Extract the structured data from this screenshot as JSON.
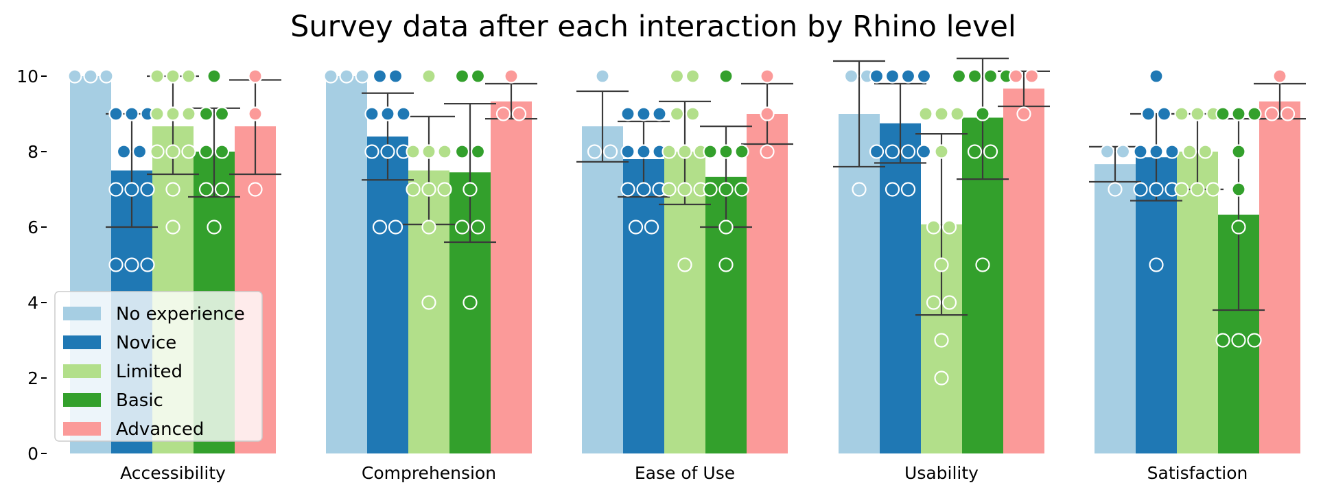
{
  "chart_data": {
    "type": "bar",
    "title": "Survey data after each interaction by Rhino level",
    "xlabel": "",
    "ylabel": "",
    "ylim": [
      0,
      10.2
    ],
    "yticks": [
      0,
      2,
      4,
      6,
      8,
      10
    ],
    "categories": [
      "Accessibility",
      "Comprehension",
      "Ease of Use",
      "Usability",
      "Satisfaction"
    ],
    "legend_position": "lower-left",
    "series": [
      {
        "name": "No experience",
        "color": "#a6cee3",
        "values": [
          10.0,
          10.0,
          8.67,
          9.0,
          7.67
        ],
        "err_low": [
          10.0,
          10.0,
          7.73,
          7.6,
          7.2
        ],
        "err_high": [
          10.0,
          10.0,
          9.6,
          10.4,
          8.13
        ],
        "points": [
          [
            10,
            10,
            10
          ],
          [
            10,
            10,
            10
          ],
          [
            8,
            8,
            10
          ],
          [
            10,
            10,
            7
          ],
          [
            8,
            8,
            7
          ]
        ]
      },
      {
        "name": "Novice",
        "color": "#1f78b4",
        "values": [
          7.5,
          8.4,
          7.8,
          8.75,
          7.85
        ],
        "err_low": [
          6.0,
          7.25,
          6.8,
          7.7,
          6.7
        ],
        "err_high": [
          9.0,
          9.55,
          8.8,
          9.8,
          9.0
        ],
        "points": [
          [
            9,
            9,
            9,
            8,
            8,
            7,
            7,
            7,
            5,
            5,
            5
          ],
          [
            10,
            10,
            9,
            9,
            9,
            8,
            8,
            8,
            6,
            6
          ],
          [
            9,
            9,
            9,
            8,
            8,
            8,
            7,
            7,
            7,
            6,
            6
          ],
          [
            10,
            10,
            10,
            10,
            8,
            8,
            8,
            8,
            7,
            7
          ],
          [
            10,
            9,
            9,
            8,
            8,
            8,
            7,
            7,
            7,
            5
          ]
        ]
      },
      {
        "name": "Limited",
        "color": "#b2df8a",
        "values": [
          8.67,
          7.5,
          8.0,
          6.07,
          8.0
        ],
        "err_low": [
          7.4,
          6.07,
          6.6,
          3.67,
          7.0
        ],
        "err_high": [
          10.0,
          8.93,
          9.33,
          8.47,
          9.0
        ],
        "points": [
          [
            10,
            10,
            10,
            9,
            9,
            9,
            8,
            8,
            8,
            7,
            6
          ],
          [
            10,
            8,
            8,
            8,
            7,
            7,
            7,
            6,
            4
          ],
          [
            10,
            10,
            9,
            9,
            8,
            8,
            8,
            7,
            7,
            7,
            5
          ],
          [
            9,
            9,
            9,
            8,
            6,
            6,
            5,
            4,
            4,
            3,
            2
          ],
          [
            9,
            9,
            9,
            8,
            8,
            7,
            7,
            7
          ]
        ]
      },
      {
        "name": "Basic",
        "color": "#33a02c",
        "values": [
          8.0,
          7.45,
          7.33,
          8.9,
          6.33
        ],
        "err_low": [
          6.8,
          5.6,
          6.0,
          7.27,
          3.8
        ],
        "err_high": [
          9.15,
          9.27,
          8.67,
          10.47,
          8.87
        ],
        "points": [
          [
            10,
            9,
            9,
            8,
            8,
            7,
            7,
            6
          ],
          [
            10,
            10,
            8,
            8,
            7,
            6,
            6,
            4
          ],
          [
            10,
            8,
            8,
            8,
            7,
            7,
            7,
            6,
            5
          ],
          [
            10,
            10,
            10,
            10,
            9,
            8,
            8,
            5
          ],
          [
            9,
            9,
            9,
            8,
            7,
            6,
            3,
            3,
            3
          ]
        ]
      },
      {
        "name": "Advanced",
        "color": "#fb9a99",
        "values": [
          8.67,
          9.33,
          9.0,
          9.67,
          9.33
        ],
        "err_low": [
          7.4,
          8.87,
          8.2,
          9.2,
          8.87
        ],
        "err_high": [
          9.9,
          9.8,
          9.8,
          10.13,
          9.8
        ],
        "points": [
          [
            10,
            9,
            7
          ],
          [
            10,
            9,
            9
          ],
          [
            10,
            9,
            8
          ],
          [
            10,
            10,
            9
          ],
          [
            10,
            9,
            9
          ]
        ]
      }
    ]
  }
}
